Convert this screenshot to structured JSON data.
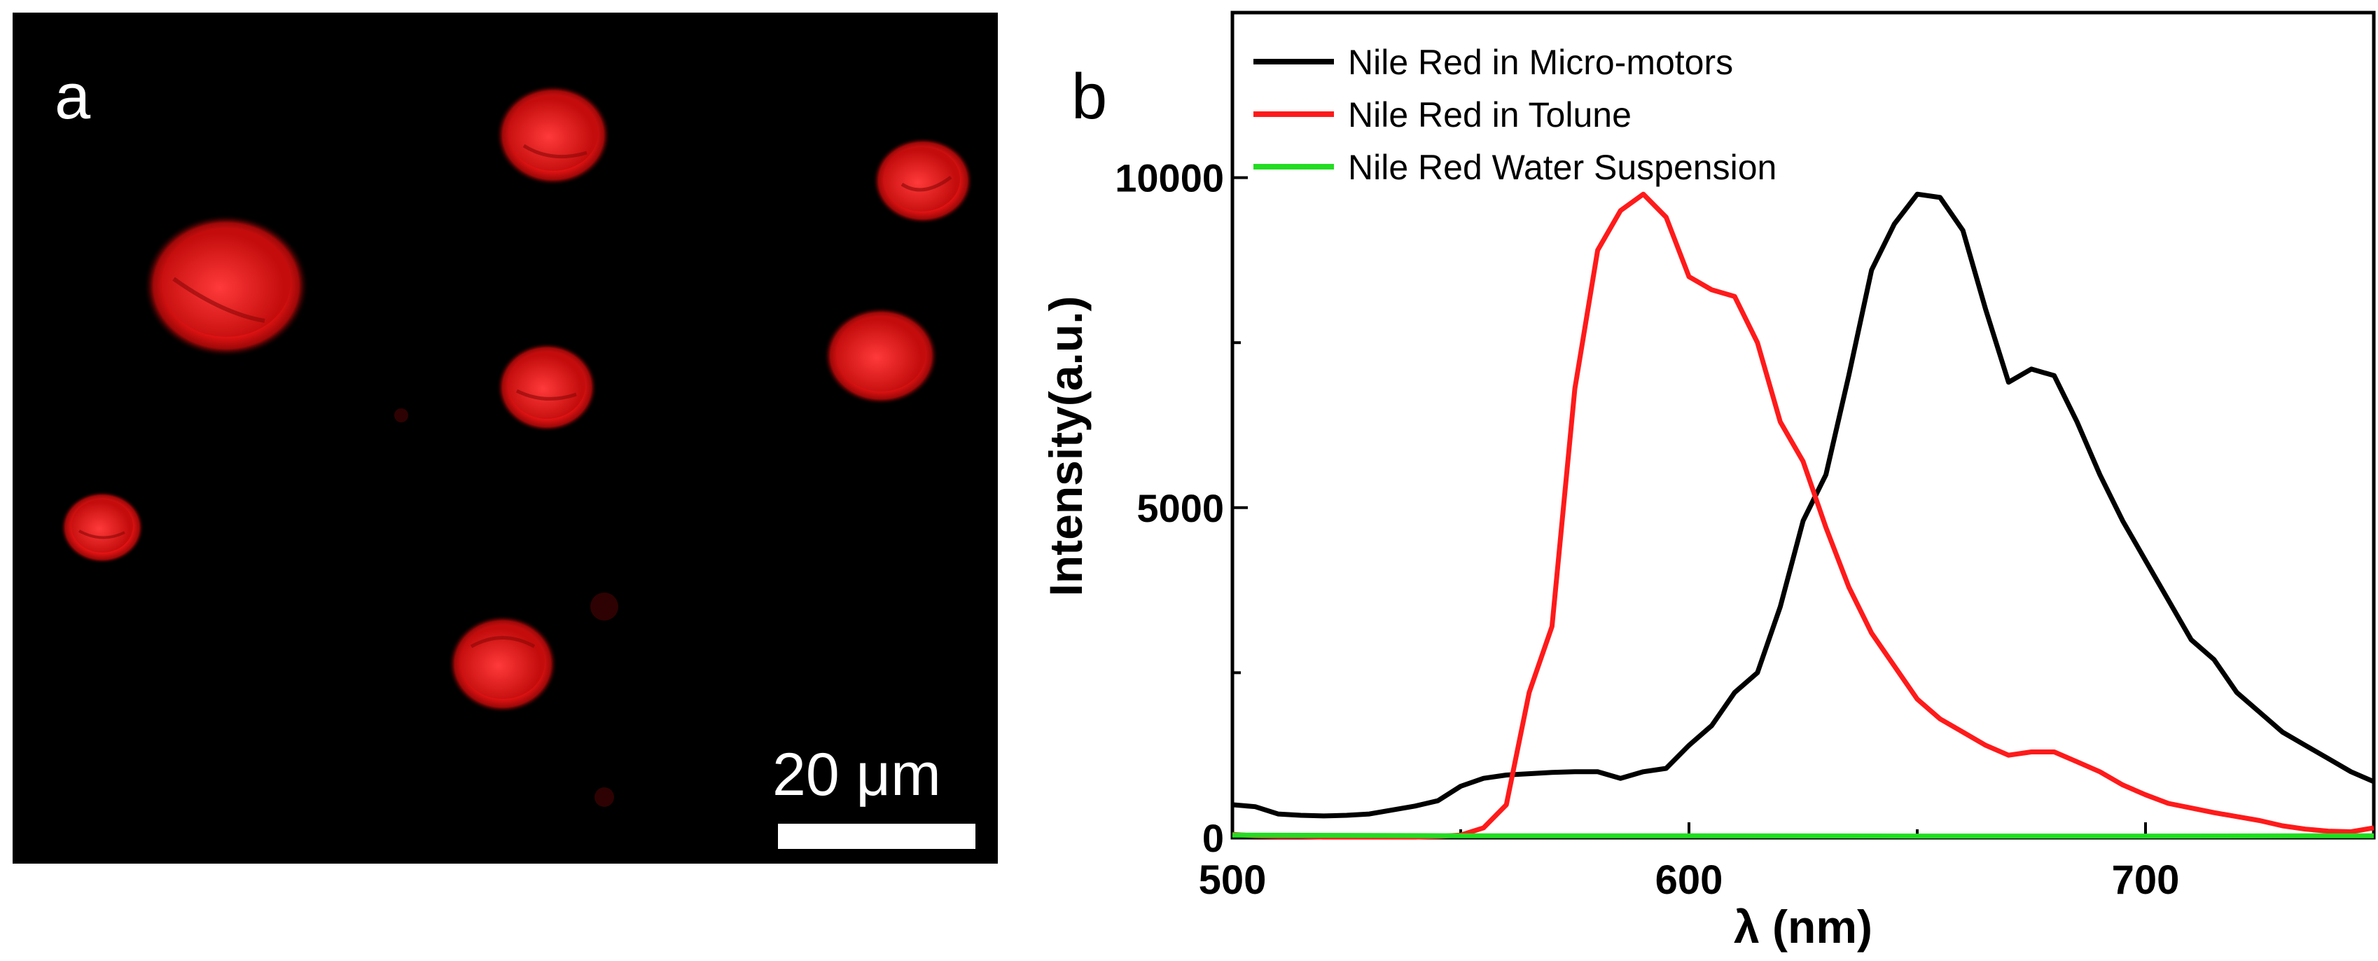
{
  "panel_a": {
    "label": "a",
    "scale_bar_label": "20 μm",
    "description_color": "#ff1a1a"
  },
  "panel_b": {
    "label": "b"
  },
  "chart_data": {
    "type": "line",
    "title": "",
    "xlabel": "λ (nm)",
    "ylabel": "Intensity(a.u.)",
    "xlim": [
      500,
      750
    ],
    "ylim": [
      0,
      12500
    ],
    "xticks": [
      500,
      600,
      700
    ],
    "yticks": [
      0,
      5000,
      10000
    ],
    "legend_position": "top-left",
    "series": [
      {
        "name": "Nile Red in Micro-motors",
        "color": "#000000",
        "x": [
          500,
          505,
          510,
          515,
          520,
          525,
          530,
          535,
          540,
          545,
          550,
          555,
          560,
          565,
          570,
          575,
          580,
          585,
          590,
          595,
          600,
          605,
          610,
          615,
          620,
          625,
          630,
          635,
          640,
          645,
          650,
          655,
          660,
          665,
          670,
          675,
          680,
          685,
          690,
          695,
          700,
          705,
          710,
          715,
          720,
          725,
          730,
          735,
          740,
          745,
          750
        ],
        "y": [
          500,
          470,
          360,
          340,
          330,
          340,
          360,
          420,
          480,
          560,
          780,
          900,
          950,
          970,
          990,
          1000,
          1000,
          900,
          1000,
          1050,
          1400,
          1700,
          2200,
          2500,
          3500,
          4800,
          5500,
          7000,
          8600,
          9300,
          9750,
          9700,
          9200,
          8000,
          6900,
          7100,
          7000,
          6300,
          5500,
          4800,
          4200,
          3600,
          3000,
          2700,
          2200,
          1900,
          1600,
          1400,
          1200,
          1000,
          850
        ]
      },
      {
        "name": "Nile Red in Tolune",
        "color": "#ff1a1a",
        "x": [
          500,
          505,
          510,
          515,
          520,
          525,
          530,
          535,
          540,
          545,
          550,
          555,
          560,
          565,
          570,
          575,
          580,
          585,
          590,
          595,
          600,
          605,
          610,
          615,
          620,
          625,
          630,
          635,
          640,
          645,
          650,
          655,
          660,
          665,
          670,
          675,
          680,
          685,
          690,
          695,
          700,
          705,
          710,
          715,
          720,
          725,
          730,
          735,
          740,
          745,
          750
        ],
        "y": [
          50,
          30,
          20,
          20,
          10,
          10,
          10,
          10,
          10,
          20,
          40,
          150,
          500,
          2200,
          3200,
          6800,
          8900,
          9500,
          9750,
          9400,
          8500,
          8300,
          8200,
          7500,
          6300,
          5700,
          4700,
          3800,
          3100,
          2600,
          2100,
          1800,
          1600,
          1400,
          1250,
          1300,
          1300,
          1150,
          1000,
          800,
          650,
          520,
          450,
          380,
          320,
          260,
          180,
          130,
          100,
          90,
          150
        ]
      },
      {
        "name": "Nile Red Water Suspension",
        "color": "#22dd22",
        "x": [
          500,
          550,
          600,
          650,
          700,
          750
        ],
        "y": [
          40,
          30,
          30,
          25,
          25,
          30
        ]
      }
    ]
  }
}
